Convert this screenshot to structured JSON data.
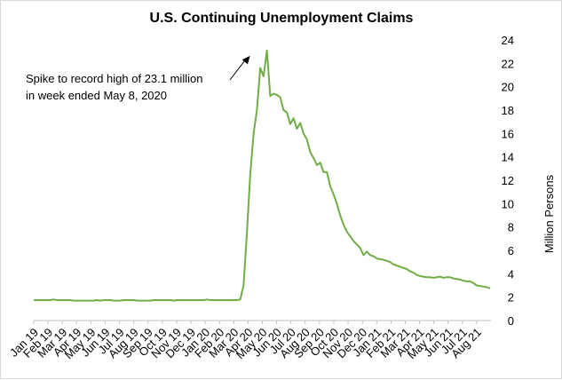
{
  "chart_data": {
    "type": "line",
    "title": "U.S. Continuing Unemployment Claims",
    "ylabel": "Million Persons",
    "xlabel": "",
    "ylim": [
      0,
      24
    ],
    "y_ticks": [
      0,
      2,
      4,
      6,
      8,
      10,
      12,
      14,
      16,
      18,
      20,
      22,
      24
    ],
    "y_axis_side": "right",
    "grid": false,
    "line_color": "#70AD47",
    "x_tick_labels": [
      "Jan 19",
      "Feb 19",
      "Mar 19",
      "Apr 19",
      "May 19",
      "Jun 19",
      "Jul 19",
      "Aug 19",
      "Sep 19",
      "Oct 19",
      "Nov 19",
      "Dec 19",
      "Jan 20",
      "Feb 20",
      "Mar 20",
      "Apr 20",
      "May 20",
      "Jun 20",
      "Jul 20",
      "Aug 20",
      "Sep 20",
      "Oct 20",
      "Nov 20",
      "Dec 20",
      "Jan 21",
      "Feb 21",
      "Mar 21",
      "Apr 21",
      "May 21",
      "Jun 21",
      "Jul 21",
      "Aug 21"
    ],
    "annotation": {
      "lines": [
        "Spike to record high of 23.1 million",
        "in week ended May 8, 2020"
      ]
    },
    "series": [
      {
        "values": [
          1.75,
          1.75,
          1.75,
          1.75,
          1.75,
          1.75,
          1.8,
          1.75,
          1.75,
          1.75,
          1.75,
          1.75,
          1.7,
          1.7,
          1.7,
          1.7,
          1.7,
          1.7,
          1.7,
          1.75,
          1.7,
          1.75,
          1.75,
          1.75,
          1.7,
          1.7,
          1.7,
          1.75,
          1.75,
          1.75,
          1.75,
          1.7,
          1.7,
          1.7,
          1.7,
          1.7,
          1.75,
          1.75,
          1.75,
          1.75,
          1.75,
          1.75,
          1.7,
          1.75,
          1.75,
          1.75,
          1.75,
          1.75,
          1.75,
          1.75,
          1.75,
          1.75,
          1.8,
          1.75,
          1.75,
          1.75,
          1.75,
          1.75,
          1.75,
          1.75,
          1.75,
          1.75,
          1.8,
          3.0,
          7.5,
          12.5,
          16.0,
          18.0,
          21.6,
          20.9,
          23.1,
          19.2,
          19.4,
          19.3,
          19.1,
          18.0,
          17.8,
          16.8,
          17.3,
          16.4,
          16.9,
          16.0,
          15.5,
          14.4,
          13.9,
          13.3,
          13.5,
          12.7,
          12.7,
          11.5,
          10.8,
          10.0,
          9.0,
          8.2,
          7.6,
          7.2,
          6.8,
          6.5,
          6.2,
          5.6,
          5.9,
          5.6,
          5.5,
          5.3,
          5.25,
          5.2,
          5.1,
          5.0,
          4.8,
          4.7,
          4.6,
          4.5,
          4.4,
          4.2,
          4.1,
          3.9,
          3.8,
          3.75,
          3.7,
          3.7,
          3.65,
          3.7,
          3.75,
          3.65,
          3.7,
          3.7,
          3.6,
          3.55,
          3.5,
          3.4,
          3.35,
          3.35,
          3.2,
          3.0,
          2.95,
          2.9,
          2.85,
          2.75
        ]
      }
    ]
  }
}
